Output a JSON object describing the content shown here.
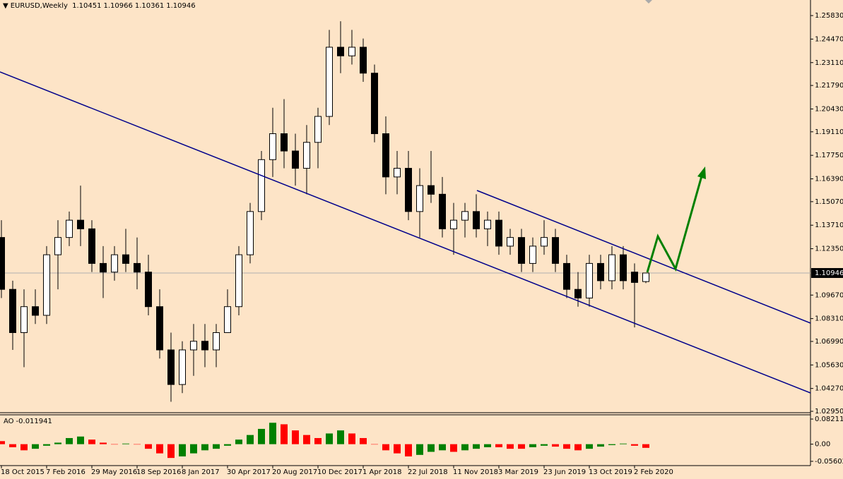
{
  "chart_data": {
    "type": "candlestick",
    "title": "EURUSD,Weekly",
    "categories": [
      "18 Oct 2015",
      null,
      null,
      null,
      "7 Feb 2016",
      null,
      null,
      null,
      "29 May 2016",
      null,
      null,
      null,
      "18 Sep 2016",
      null,
      null,
      null,
      "8 Jan 2017",
      null,
      null,
      null,
      "30 Apr 2017",
      null,
      null,
      null,
      "20 Aug 2017",
      null,
      null,
      null,
      "10 Dec 2017",
      null,
      null,
      null,
      "1 Apr 2018",
      null,
      null,
      null,
      "22 Jul 2018",
      null,
      null,
      null,
      "11 Nov 2018",
      null,
      null,
      null,
      "3 Mar 2019",
      null,
      null,
      null,
      "23 Jun 2019",
      null,
      null,
      null,
      "13 Oct 2019",
      null,
      null,
      null,
      "2 Feb 2020",
      null
    ],
    "ohlc": [
      [
        1.13,
        1.14,
        1.095,
        1.1
      ],
      [
        1.1,
        1.105,
        1.065,
        1.075
      ],
      [
        1.075,
        1.1,
        1.055,
        1.09
      ],
      [
        1.09,
        1.1,
        1.08,
        1.085
      ],
      [
        1.085,
        1.125,
        1.08,
        1.12
      ],
      [
        1.12,
        1.14,
        1.1,
        1.13
      ],
      [
        1.13,
        1.145,
        1.125,
        1.14
      ],
      [
        1.14,
        1.16,
        1.125,
        1.135
      ],
      [
        1.135,
        1.14,
        1.11,
        1.115
      ],
      [
        1.115,
        1.125,
        1.095,
        1.11
      ],
      [
        1.11,
        1.125,
        1.105,
        1.12
      ],
      [
        1.12,
        1.135,
        1.11,
        1.115
      ],
      [
        1.115,
        1.13,
        1.1,
        1.11
      ],
      [
        1.11,
        1.12,
        1.085,
        1.09
      ],
      [
        1.09,
        1.1,
        1.06,
        1.065
      ],
      [
        1.065,
        1.075,
        1.035,
        1.045
      ],
      [
        1.045,
        1.07,
        1.04,
        1.065
      ],
      [
        1.065,
        1.08,
        1.05,
        1.07
      ],
      [
        1.07,
        1.08,
        1.055,
        1.065
      ],
      [
        1.065,
        1.08,
        1.055,
        1.075
      ],
      [
        1.075,
        1.1,
        1.075,
        1.09
      ],
      [
        1.09,
        1.125,
        1.085,
        1.12
      ],
      [
        1.12,
        1.15,
        1.115,
        1.145
      ],
      [
        1.145,
        1.18,
        1.14,
        1.175
      ],
      [
        1.175,
        1.205,
        1.165,
        1.19
      ],
      [
        1.19,
        1.21,
        1.17,
        1.18
      ],
      [
        1.18,
        1.19,
        1.16,
        1.17
      ],
      [
        1.17,
        1.195,
        1.155,
        1.185
      ],
      [
        1.185,
        1.205,
        1.17,
        1.2
      ],
      [
        1.2,
        1.25,
        1.195,
        1.24
      ],
      [
        1.24,
        1.255,
        1.225,
        1.235
      ],
      [
        1.235,
        1.25,
        1.23,
        1.24
      ],
      [
        1.24,
        1.245,
        1.22,
        1.225
      ],
      [
        1.225,
        1.23,
        1.185,
        1.19
      ],
      [
        1.19,
        1.2,
        1.155,
        1.165
      ],
      [
        1.165,
        1.18,
        1.155,
        1.17
      ],
      [
        1.17,
        1.18,
        1.14,
        1.145
      ],
      [
        1.145,
        1.17,
        1.13,
        1.16
      ],
      [
        1.16,
        1.18,
        1.15,
        1.155
      ],
      [
        1.155,
        1.165,
        1.13,
        1.135
      ],
      [
        1.135,
        1.15,
        1.12,
        1.14
      ],
      [
        1.14,
        1.15,
        1.13,
        1.145
      ],
      [
        1.145,
        1.155,
        1.13,
        1.135
      ],
      [
        1.135,
        1.145,
        1.125,
        1.14
      ],
      [
        1.14,
        1.145,
        1.12,
        1.125
      ],
      [
        1.125,
        1.135,
        1.12,
        1.13
      ],
      [
        1.13,
        1.135,
        1.11,
        1.115
      ],
      [
        1.115,
        1.13,
        1.11,
        1.125
      ],
      [
        1.125,
        1.14,
        1.12,
        1.13
      ],
      [
        1.13,
        1.135,
        1.11,
        1.115
      ],
      [
        1.115,
        1.12,
        1.095,
        1.1
      ],
      [
        1.1,
        1.11,
        1.09,
        1.095
      ],
      [
        1.095,
        1.12,
        1.09,
        1.115
      ],
      [
        1.115,
        1.12,
        1.1,
        1.105
      ],
      [
        1.105,
        1.125,
        1.1,
        1.12
      ],
      [
        1.12,
        1.125,
        1.1,
        1.105
      ],
      [
        1.11,
        1.115,
        1.078,
        1.104
      ],
      [
        1.10451,
        1.10966,
        1.10361,
        1.10946
      ]
    ],
    "ylim": [
      1.0287,
      1.2673
    ],
    "yticks": [
      {
        "value": 1.2583,
        "label": "1.25830"
      },
      {
        "value": 1.2447,
        "label": "1.24470"
      },
      {
        "value": 1.2311,
        "label": "1.23110"
      },
      {
        "value": 1.2179,
        "label": "1.21790"
      },
      {
        "value": 1.2043,
        "label": "1.20430"
      },
      {
        "value": 1.1911,
        "label": "1.19110"
      },
      {
        "value": 1.1775,
        "label": "1.17750"
      },
      {
        "value": 1.1639,
        "label": "1.16390"
      },
      {
        "value": 1.1507,
        "label": "1.15070"
      },
      {
        "value": 1.1371,
        "label": "1.13710"
      },
      {
        "value": 1.1235,
        "label": "1.12350"
      },
      {
        "value": 1.0967,
        "label": "1.09670"
      },
      {
        "value": 1.0831,
        "label": "1.08310"
      },
      {
        "value": 1.0699,
        "label": "1.06990"
      },
      {
        "value": 1.0563,
        "label": "1.05630"
      },
      {
        "value": 1.0427,
        "label": "1.04270"
      },
      {
        "value": 1.0295,
        "label": "1.02950"
      }
    ],
    "indicator": {
      "type": "bar",
      "title": "AO",
      "values": [
        0.01,
        -0.01,
        -0.02,
        -0.015,
        -0.005,
        0.005,
        0.02,
        0.025,
        0.015,
        0.005,
        0.0,
        0.002,
        0.0,
        -0.015,
        -0.03,
        -0.045,
        -0.04,
        -0.03,
        -0.02,
        -0.015,
        -0.005,
        0.015,
        0.03,
        0.05,
        0.07,
        0.065,
        0.045,
        0.03,
        0.02,
        0.035,
        0.045,
        0.035,
        0.02,
        0.0,
        -0.02,
        -0.03,
        -0.04,
        -0.035,
        -0.025,
        -0.02,
        -0.025,
        -0.02,
        -0.015,
        -0.01,
        -0.01,
        -0.015,
        -0.015,
        -0.01,
        -0.005,
        -0.008,
        -0.015,
        -0.02,
        -0.015,
        -0.008,
        -0.003,
        0.002,
        -0.005,
        -0.011941
      ],
      "ylim": [
        -0.07,
        0.096
      ],
      "yticks": [
        0.082119,
        {
          "value": 0,
          "label": "0.00"
        },
        -0.056025
      ],
      "up_color": "#008000",
      "down_color": "#ff0000"
    }
  }
}
